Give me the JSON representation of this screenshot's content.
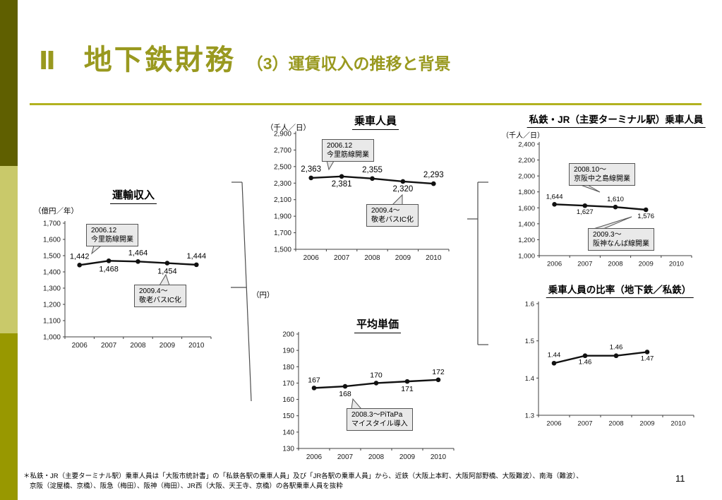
{
  "slide": {
    "title_numeral": "Ⅱ",
    "title_main": "地下鉄財務",
    "title_sub": "（3）運賃収入の推移と背景",
    "page_number": "11",
    "footnote_line1": "＊私鉄・JR（主要ターミナル駅）乗車人員は「大阪市統計書」の「私鉄各駅の乗車人員」及び「JR各駅の乗車人員」から、近鉄（大阪上本町、大阪阿部野橋、大阪難波）、南海（難波）、",
    "footnote_line2": "京阪（淀屋橋、京橋）、阪急（梅田）、阪神（梅田）、JR西（大阪、天王寺、京橋）の各駅乗車人員を抜粋"
  },
  "colors": {
    "sidebar_dark": "#5f5f00",
    "sidebar_light": "#c9c96a",
    "sidebar_mid": "#989800",
    "title_text": "#99991f",
    "divider": "#b2b220",
    "series_line": "#111111",
    "callout_fill": "#e9e9e9"
  },
  "chart_data": [
    {
      "type": "line",
      "title": "運輸収入",
      "unit": "（億円／年）",
      "categories": [
        "2006",
        "2007",
        "2008",
        "2009",
        "2010"
      ],
      "values": [
        1442,
        1468,
        1464,
        1454,
        1444
      ],
      "point_labels": [
        "1,442",
        "1,468",
        "1,464",
        "1,454",
        "1,444"
      ],
      "label_side": [
        "above",
        "below",
        "above",
        "below",
        "above"
      ],
      "ylim": [
        1000,
        1700
      ],
      "ytick": 100,
      "ytick_format": "comma",
      "ytick_labels": [
        "1,000",
        "1,100",
        "1,200",
        "1,300",
        "1,400",
        "1,500",
        "1,600",
        "1,700"
      ],
      "grid": false,
      "legend": "none",
      "annotations": [
        "2006.12\n今里筋線開業",
        "2009.4～\n敬老バスIC化"
      ]
    },
    {
      "type": "line",
      "title": "乗車人員",
      "unit": "（千人／日）",
      "categories": [
        "2006",
        "2007",
        "2008",
        "2009",
        "2010"
      ],
      "values": [
        2363,
        2381,
        2355,
        2320,
        2293
      ],
      "point_labels": [
        "2,363",
        "2,381",
        "2,355",
        "2,320",
        "2,293"
      ],
      "label_side": [
        "above",
        "below",
        "above",
        "below",
        "above"
      ],
      "ylim": [
        1500,
        2900
      ],
      "ytick": 200,
      "ytick_format": "comma",
      "ytick_labels": [
        "1,500",
        "1,700",
        "1,900",
        "2,100",
        "2,300",
        "2,500",
        "2,700",
        "2,900"
      ],
      "grid": false,
      "legend": "none",
      "annotations": [
        "2006.12\n今里筋線開業",
        "2009.4～\n敬老バスIC化"
      ]
    },
    {
      "type": "line",
      "title": "平均単価",
      "unit": "（円）",
      "categories": [
        "2006",
        "2007",
        "2008",
        "2009",
        "2010"
      ],
      "values": [
        167,
        168,
        170,
        171,
        172
      ],
      "point_labels": [
        "167",
        "168",
        "170",
        "171",
        "172"
      ],
      "label_side": [
        "above",
        "below",
        "above",
        "below",
        "above"
      ],
      "ylim": [
        130,
        200
      ],
      "ytick": 10,
      "ytick_format": "int",
      "ytick_labels": [
        "130",
        "140",
        "150",
        "160",
        "170",
        "180",
        "190",
        "200"
      ],
      "grid": false,
      "legend": "none",
      "annotations": [
        "2008.3～PiTaPa\nマイスタイル導入"
      ]
    },
    {
      "type": "line",
      "title": "私鉄・JR（主要ターミナル駅）乗車人員",
      "unit": "（千人／日）",
      "categories": [
        "2006",
        "2007",
        "2008",
        "2009",
        "2010"
      ],
      "values": [
        1644,
        1627,
        1610,
        1576,
        null
      ],
      "point_labels": [
        "1,644",
        "1,627",
        "1,610",
        "1,576"
      ],
      "label_side": [
        "above",
        "below",
        "above",
        "below"
      ],
      "ylim": [
        1000,
        2400
      ],
      "ytick": 200,
      "ytick_format": "comma",
      "ytick_labels": [
        "1,000",
        "1,200",
        "1,400",
        "1,600",
        "1,800",
        "2,000",
        "2,200",
        "2,400"
      ],
      "grid": false,
      "legend": "none",
      "annotations": [
        "2008.10～\n京阪中之島線開業",
        "2009.3～\n阪神なんば線開業"
      ]
    },
    {
      "type": "line",
      "title": "乗車人員の比率（地下鉄／私鉄）",
      "unit": null,
      "categories": [
        "2006",
        "2007",
        "2008",
        "2009",
        "2010"
      ],
      "values": [
        1.44,
        1.46,
        1.46,
        1.47,
        null
      ],
      "point_labels": [
        "1.44",
        "1.46",
        "1.46",
        "1.47"
      ],
      "label_side": [
        "above",
        "below",
        "above",
        "below"
      ],
      "ylim": [
        1.3,
        1.6
      ],
      "ytick": 0.1,
      "ytick_format": "one-decimal",
      "ytick_labels": [
        "1.3",
        "1.4",
        "1.5",
        "1.6"
      ],
      "grid": false,
      "legend": "none",
      "annotations": []
    }
  ]
}
